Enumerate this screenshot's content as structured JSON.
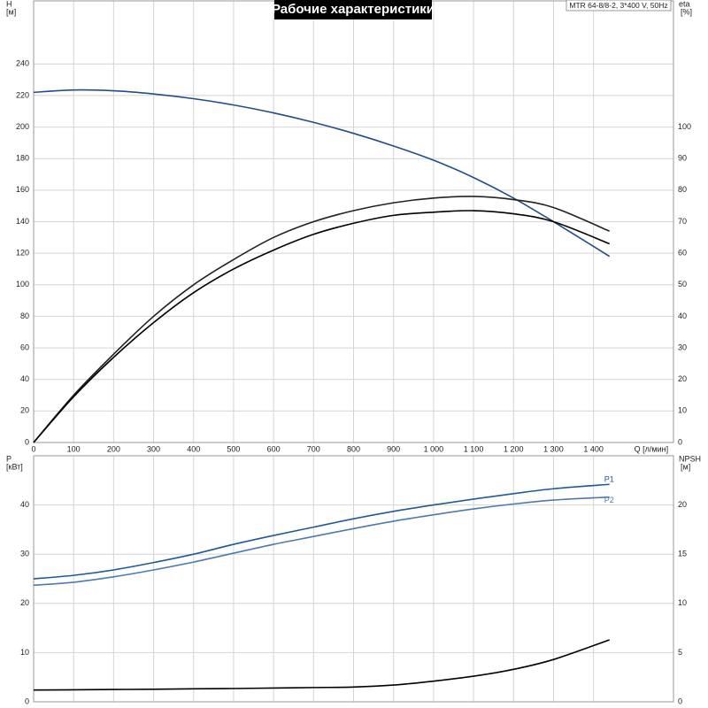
{
  "chart_data": [
    {
      "type": "line",
      "title": "Рабочие характеристики",
      "subtitle": "MTR 64-8/8-2, 3*400 V, 50Hz",
      "x_label": "Q [л/мин]",
      "y_label": "H",
      "y_unit": "[м]",
      "y2_label": "eta",
      "y2_unit": "[%]",
      "x": [
        0,
        100,
        200,
        300,
        400,
        500,
        600,
        700,
        800,
        900,
        1000,
        1100,
        1200,
        1300,
        1440
      ],
      "series": [
        {
          "color": "#1f4e8c",
          "values": [
            222,
            223.5,
            223,
            221,
            218,
            214,
            209,
            203,
            196,
            188,
            179,
            168,
            155,
            140,
            118
          ]
        },
        {
          "color": "#222222",
          "axis": "y2",
          "values": [
            0,
            15,
            28,
            40,
            50,
            58,
            65,
            70,
            73.5,
            76,
            77.5,
            78,
            77,
            74.5,
            67
          ]
        },
        {
          "color": "#000000",
          "axis": "y2",
          "values": [
            0,
            14.5,
            27,
            38,
            47.5,
            55,
            61,
            66,
            69.5,
            72,
            73,
            73.5,
            72.5,
            70,
            63
          ]
        }
      ],
      "xlim": [
        0,
        1600
      ],
      "xticks": [
        0,
        100,
        200,
        300,
        400,
        500,
        600,
        700,
        800,
        900,
        {
          "value": 1000,
          "label": "1 000"
        },
        {
          "value": 1100,
          "label": "1 100"
        },
        {
          "value": 1200,
          "label": "1 200"
        },
        {
          "value": 1300,
          "label": "1 300"
        },
        {
          "value": 1400,
          "label": "1 400"
        }
      ],
      "ylim": [
        0,
        280
      ],
      "yticks": [
        0,
        20,
        40,
        60,
        80,
        100,
        120,
        140,
        160,
        180,
        200,
        220,
        240
      ],
      "y2lim": [
        0,
        140
      ],
      "y2ticks": [
        0,
        10,
        20,
        30,
        40,
        50,
        60,
        70,
        80,
        90,
        100
      ],
      "grid": true
    },
    {
      "type": "line",
      "y_label": "P",
      "y_unit": "[кВт]",
      "y2_label": "NPSH",
      "y2_unit": "[м]",
      "x": [
        0,
        100,
        200,
        300,
        400,
        500,
        600,
        700,
        800,
        900,
        1000,
        1100,
        1200,
        1300,
        1440
      ],
      "series": [
        {
          "name": "P1",
          "color": "#1f5a9a",
          "values": [
            25,
            25.7,
            26.8,
            28.3,
            30,
            32,
            33.8,
            35.5,
            37.2,
            38.7,
            40,
            41.2,
            42.3,
            43.3,
            44.2
          ]
        },
        {
          "name": "P2",
          "color": "#4a7ab0",
          "values": [
            23.7,
            24.3,
            25.4,
            26.8,
            28.4,
            30.2,
            32,
            33.6,
            35.2,
            36.7,
            38,
            39.2,
            40.2,
            41,
            41.6
          ]
        },
        {
          "color": "#000000",
          "axis": "y2",
          "values": [
            1.2,
            1.22,
            1.25,
            1.28,
            1.32,
            1.35,
            1.4,
            1.45,
            1.5,
            1.7,
            2.1,
            2.6,
            3.3,
            4.3,
            6.3
          ]
        }
      ],
      "xlim": [
        0,
        1600
      ],
      "xticks": [
        0,
        100,
        200,
        300,
        400,
        500,
        600,
        700,
        800,
        900,
        1000,
        1100,
        1200,
        1300,
        1400
      ],
      "ylim": [
        0,
        50
      ],
      "yticks": [
        0,
        10,
        20,
        30,
        40
      ],
      "y2lim": [
        0,
        25
      ],
      "y2ticks": [
        0,
        5,
        10,
        15,
        20
      ],
      "grid": true
    }
  ]
}
